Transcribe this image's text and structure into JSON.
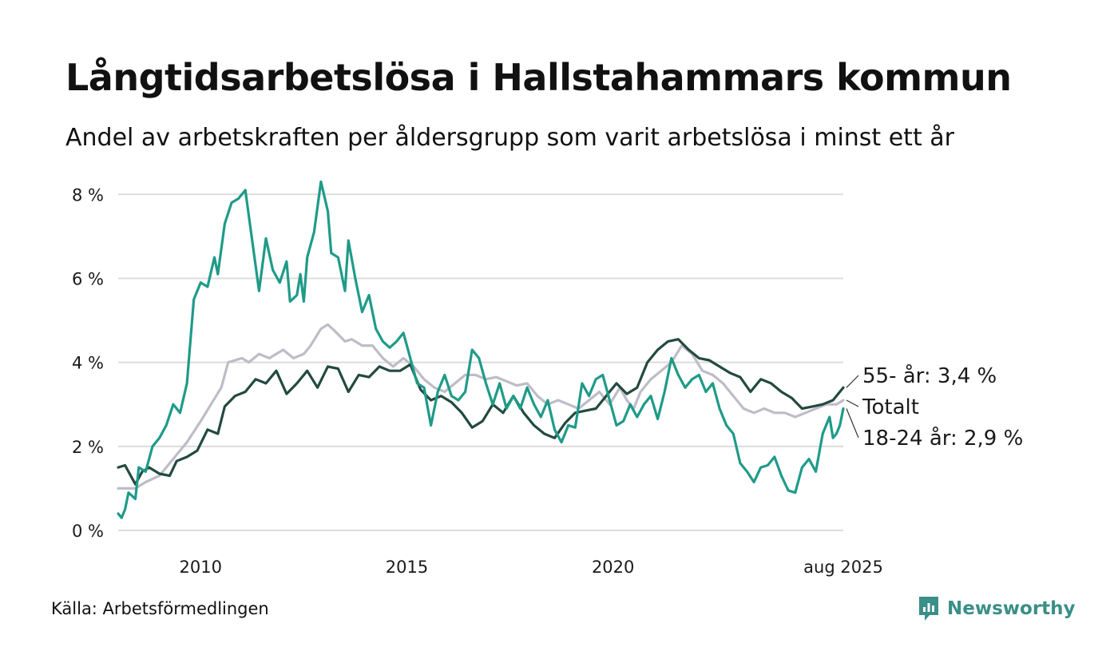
{
  "header": {
    "title": "Långtidsarbetslösa i Hallstahammars kommun",
    "subtitle": "Andel av arbetskraften per åldersgrupp som varit arbetslösa i minst ett år"
  },
  "footer": {
    "source": "Källa: Arbetsförmedlingen",
    "brand": "Newsworthy",
    "brand_icon": "newsworthy-logo-icon"
  },
  "colors": {
    "55- år": "#234a40",
    "Totalt": "#bfbcc8",
    "18-24 år": "#1f9b88",
    "grid": "#dcdcdc",
    "brand": "#3a8f88"
  },
  "chart_data": {
    "type": "line",
    "title": "Långtidsarbetslösa i Hallstahammars kommun",
    "subtitle": "Andel av arbetskraften per åldersgrupp som varit arbetslösa i minst ett år",
    "xlabel": "",
    "ylabel": "",
    "x_ticks": [
      {
        "label": "2010",
        "date": "2010-01"
      },
      {
        "label": "2015",
        "date": "2015-01"
      },
      {
        "label": "2020",
        "date": "2020-01"
      },
      {
        "label": "aug 2025",
        "date": "2025-08"
      }
    ],
    "y_ticks": [
      "0 %",
      "2 %",
      "4 %",
      "6 %",
      "8 %"
    ],
    "ylim": [
      0,
      8.5
    ],
    "xlim": [
      "2008-01",
      "2025-08"
    ],
    "grid": "horizontal",
    "legend": "end-labels",
    "end_labels": {
      "55- år": "55- år: 3,4 %",
      "Totalt": "Totalt",
      "18-24 år": "18-24 år: 2,9 %"
    },
    "series": [
      {
        "name": "Totalt",
        "points": [
          [
            "2008-01",
            1.0
          ],
          [
            "2008-06",
            1.0
          ],
          [
            "2008-09",
            1.15
          ],
          [
            "2009-01",
            1.3
          ],
          [
            "2009-04",
            1.6
          ],
          [
            "2009-06",
            1.8
          ],
          [
            "2009-09",
            2.1
          ],
          [
            "2010-01",
            2.6
          ],
          [
            "2010-04",
            3.0
          ],
          [
            "2010-07",
            3.4
          ],
          [
            "2010-09",
            4.0
          ],
          [
            "2011-01",
            4.1
          ],
          [
            "2011-03",
            4.0
          ],
          [
            "2011-06",
            4.2
          ],
          [
            "2011-09",
            4.1
          ],
          [
            "2012-01",
            4.3
          ],
          [
            "2012-04",
            4.1
          ],
          [
            "2012-07",
            4.2
          ],
          [
            "2012-09",
            4.4
          ],
          [
            "2012-12",
            4.8
          ],
          [
            "2013-02",
            4.9
          ],
          [
            "2013-04",
            4.75
          ],
          [
            "2013-07",
            4.5
          ],
          [
            "2013-09",
            4.55
          ],
          [
            "2013-12",
            4.4
          ],
          [
            "2014-03",
            4.4
          ],
          [
            "2014-06",
            4.1
          ],
          [
            "2014-09",
            3.9
          ],
          [
            "2014-12",
            4.1
          ],
          [
            "2015-03",
            3.9
          ],
          [
            "2015-06",
            3.6
          ],
          [
            "2015-09",
            3.4
          ],
          [
            "2015-12",
            3.3
          ],
          [
            "2016-03",
            3.5
          ],
          [
            "2016-06",
            3.7
          ],
          [
            "2016-09",
            3.7
          ],
          [
            "2016-12",
            3.6
          ],
          [
            "2017-03",
            3.65
          ],
          [
            "2017-06",
            3.55
          ],
          [
            "2017-09",
            3.45
          ],
          [
            "2017-12",
            3.5
          ],
          [
            "2018-03",
            3.2
          ],
          [
            "2018-06",
            3.0
          ],
          [
            "2018-09",
            3.1
          ],
          [
            "2018-12",
            3.0
          ],
          [
            "2019-03",
            2.9
          ],
          [
            "2019-06",
            3.1
          ],
          [
            "2019-09",
            3.3
          ],
          [
            "2019-12",
            3.0
          ],
          [
            "2020-03",
            3.4
          ],
          [
            "2020-05",
            3.1
          ],
          [
            "2020-07",
            2.9
          ],
          [
            "2020-09",
            3.3
          ],
          [
            "2020-12",
            3.6
          ],
          [
            "2021-03",
            3.8
          ],
          [
            "2021-06",
            4.0
          ],
          [
            "2021-09",
            4.4
          ],
          [
            "2021-12",
            4.2
          ],
          [
            "2022-03",
            3.8
          ],
          [
            "2022-06",
            3.7
          ],
          [
            "2022-09",
            3.5
          ],
          [
            "2022-12",
            3.2
          ],
          [
            "2023-03",
            2.9
          ],
          [
            "2023-06",
            2.8
          ],
          [
            "2023-09",
            2.9
          ],
          [
            "2023-12",
            2.8
          ],
          [
            "2024-03",
            2.8
          ],
          [
            "2024-06",
            2.7
          ],
          [
            "2024-09",
            2.8
          ],
          [
            "2024-12",
            2.9
          ],
          [
            "2025-03",
            3.0
          ],
          [
            "2025-06",
            3.0
          ],
          [
            "2025-08",
            3.1
          ]
        ]
      },
      {
        "name": "55- år",
        "points": [
          [
            "2008-01",
            1.5
          ],
          [
            "2008-03",
            1.55
          ],
          [
            "2008-06",
            1.1
          ],
          [
            "2008-08",
            1.4
          ],
          [
            "2008-10",
            1.5
          ],
          [
            "2009-01",
            1.35
          ],
          [
            "2009-04",
            1.3
          ],
          [
            "2009-06",
            1.65
          ],
          [
            "2009-09",
            1.75
          ],
          [
            "2009-12",
            1.9
          ],
          [
            "2010-03",
            2.4
          ],
          [
            "2010-06",
            2.3
          ],
          [
            "2010-08",
            2.95
          ],
          [
            "2010-11",
            3.2
          ],
          [
            "2011-02",
            3.3
          ],
          [
            "2011-05",
            3.6
          ],
          [
            "2011-08",
            3.5
          ],
          [
            "2011-11",
            3.8
          ],
          [
            "2012-02",
            3.25
          ],
          [
            "2012-05",
            3.5
          ],
          [
            "2012-08",
            3.8
          ],
          [
            "2012-11",
            3.4
          ],
          [
            "2013-02",
            3.9
          ],
          [
            "2013-05",
            3.85
          ],
          [
            "2013-08",
            3.3
          ],
          [
            "2013-11",
            3.7
          ],
          [
            "2014-02",
            3.65
          ],
          [
            "2014-05",
            3.9
          ],
          [
            "2014-08",
            3.8
          ],
          [
            "2014-11",
            3.8
          ],
          [
            "2015-02",
            3.95
          ],
          [
            "2015-05",
            3.35
          ],
          [
            "2015-08",
            3.1
          ],
          [
            "2015-11",
            3.2
          ],
          [
            "2016-02",
            3.05
          ],
          [
            "2016-05",
            2.8
          ],
          [
            "2016-08",
            2.45
          ],
          [
            "2016-11",
            2.6
          ],
          [
            "2017-02",
            3.0
          ],
          [
            "2017-05",
            2.8
          ],
          [
            "2017-08",
            3.2
          ],
          [
            "2017-11",
            2.8
          ],
          [
            "2018-02",
            2.5
          ],
          [
            "2018-05",
            2.3
          ],
          [
            "2018-08",
            2.2
          ],
          [
            "2018-11",
            2.55
          ],
          [
            "2019-02",
            2.8
          ],
          [
            "2019-05",
            2.85
          ],
          [
            "2019-08",
            2.9
          ],
          [
            "2019-11",
            3.2
          ],
          [
            "2020-02",
            3.5
          ],
          [
            "2020-05",
            3.25
          ],
          [
            "2020-08",
            3.4
          ],
          [
            "2020-11",
            4.0
          ],
          [
            "2021-02",
            4.3
          ],
          [
            "2021-05",
            4.5
          ],
          [
            "2021-08",
            4.55
          ],
          [
            "2021-11",
            4.3
          ],
          [
            "2022-02",
            4.1
          ],
          [
            "2022-05",
            4.05
          ],
          [
            "2022-08",
            3.9
          ],
          [
            "2022-11",
            3.75
          ],
          [
            "2023-02",
            3.65
          ],
          [
            "2023-05",
            3.3
          ],
          [
            "2023-08",
            3.6
          ],
          [
            "2023-11",
            3.5
          ],
          [
            "2024-02",
            3.3
          ],
          [
            "2024-05",
            3.15
          ],
          [
            "2024-08",
            2.9
          ],
          [
            "2024-11",
            2.95
          ],
          [
            "2025-02",
            3.0
          ],
          [
            "2025-05",
            3.1
          ],
          [
            "2025-08",
            3.4
          ]
        ]
      },
      {
        "name": "18-24 år",
        "points": [
          [
            "2008-01",
            0.4
          ],
          [
            "2008-02",
            0.3
          ],
          [
            "2008-03",
            0.5
          ],
          [
            "2008-04",
            0.9
          ],
          [
            "2008-06",
            0.75
          ],
          [
            "2008-07",
            1.5
          ],
          [
            "2008-09",
            1.4
          ],
          [
            "2008-11",
            2.0
          ],
          [
            "2009-01",
            2.2
          ],
          [
            "2009-03",
            2.5
          ],
          [
            "2009-05",
            3.0
          ],
          [
            "2009-07",
            2.8
          ],
          [
            "2009-09",
            3.5
          ],
          [
            "2009-11",
            5.5
          ],
          [
            "2010-01",
            5.9
          ],
          [
            "2010-03",
            5.8
          ],
          [
            "2010-05",
            6.5
          ],
          [
            "2010-06",
            6.1
          ],
          [
            "2010-08",
            7.3
          ],
          [
            "2010-10",
            7.8
          ],
          [
            "2010-12",
            7.9
          ],
          [
            "2011-02",
            8.1
          ],
          [
            "2011-04",
            6.9
          ],
          [
            "2011-06",
            5.7
          ],
          [
            "2011-08",
            6.95
          ],
          [
            "2011-10",
            6.2
          ],
          [
            "2011-12",
            5.9
          ],
          [
            "2012-02",
            6.4
          ],
          [
            "2012-03",
            5.45
          ],
          [
            "2012-05",
            5.6
          ],
          [
            "2012-06",
            6.1
          ],
          [
            "2012-07",
            5.45
          ],
          [
            "2012-08",
            6.5
          ],
          [
            "2012-10",
            7.1
          ],
          [
            "2012-12",
            8.3
          ],
          [
            "2013-02",
            7.6
          ],
          [
            "2013-03",
            6.6
          ],
          [
            "2013-05",
            6.5
          ],
          [
            "2013-07",
            5.7
          ],
          [
            "2013-08",
            6.9
          ],
          [
            "2013-10",
            6.0
          ],
          [
            "2013-12",
            5.2
          ],
          [
            "2014-02",
            5.6
          ],
          [
            "2014-04",
            4.8
          ],
          [
            "2014-06",
            4.5
          ],
          [
            "2014-08",
            4.35
          ],
          [
            "2014-10",
            4.5
          ],
          [
            "2014-12",
            4.7
          ],
          [
            "2015-02",
            4.1
          ],
          [
            "2015-04",
            3.5
          ],
          [
            "2015-06",
            3.4
          ],
          [
            "2015-08",
            2.5
          ],
          [
            "2015-10",
            3.3
          ],
          [
            "2015-12",
            3.7
          ],
          [
            "2016-02",
            3.2
          ],
          [
            "2016-04",
            3.1
          ],
          [
            "2016-06",
            3.3
          ],
          [
            "2016-08",
            4.3
          ],
          [
            "2016-10",
            4.1
          ],
          [
            "2016-12",
            3.5
          ],
          [
            "2017-02",
            3.0
          ],
          [
            "2017-04",
            3.5
          ],
          [
            "2017-06",
            2.9
          ],
          [
            "2017-08",
            3.2
          ],
          [
            "2017-10",
            2.9
          ],
          [
            "2017-12",
            3.4
          ],
          [
            "2018-02",
            3.0
          ],
          [
            "2018-04",
            2.7
          ],
          [
            "2018-06",
            3.1
          ],
          [
            "2018-08",
            2.4
          ],
          [
            "2018-10",
            2.1
          ],
          [
            "2018-12",
            2.5
          ],
          [
            "2019-02",
            2.45
          ],
          [
            "2019-04",
            3.5
          ],
          [
            "2019-06",
            3.2
          ],
          [
            "2019-08",
            3.6
          ],
          [
            "2019-10",
            3.7
          ],
          [
            "2019-12",
            3.1
          ],
          [
            "2020-02",
            2.5
          ],
          [
            "2020-04",
            2.6
          ],
          [
            "2020-06",
            3.0
          ],
          [
            "2020-08",
            2.7
          ],
          [
            "2020-10",
            3.0
          ],
          [
            "2020-12",
            3.2
          ],
          [
            "2021-02",
            2.65
          ],
          [
            "2021-04",
            3.3
          ],
          [
            "2021-06",
            4.1
          ],
          [
            "2021-08",
            3.7
          ],
          [
            "2021-10",
            3.4
          ],
          [
            "2021-12",
            3.6
          ],
          [
            "2022-02",
            3.7
          ],
          [
            "2022-04",
            3.3
          ],
          [
            "2022-06",
            3.5
          ],
          [
            "2022-08",
            2.9
          ],
          [
            "2022-10",
            2.5
          ],
          [
            "2022-12",
            2.3
          ],
          [
            "2023-02",
            1.6
          ],
          [
            "2023-04",
            1.4
          ],
          [
            "2023-06",
            1.15
          ],
          [
            "2023-08",
            1.5
          ],
          [
            "2023-10",
            1.55
          ],
          [
            "2023-12",
            1.75
          ],
          [
            "2024-02",
            1.3
          ],
          [
            "2024-04",
            0.95
          ],
          [
            "2024-06",
            0.9
          ],
          [
            "2024-08",
            1.5
          ],
          [
            "2024-10",
            1.7
          ],
          [
            "2024-12",
            1.4
          ],
          [
            "2025-02",
            2.3
          ],
          [
            "2025-04",
            2.7
          ],
          [
            "2025-05",
            2.2
          ],
          [
            "2025-06",
            2.3
          ],
          [
            "2025-07",
            2.5
          ],
          [
            "2025-08",
            2.9
          ]
        ]
      }
    ]
  }
}
